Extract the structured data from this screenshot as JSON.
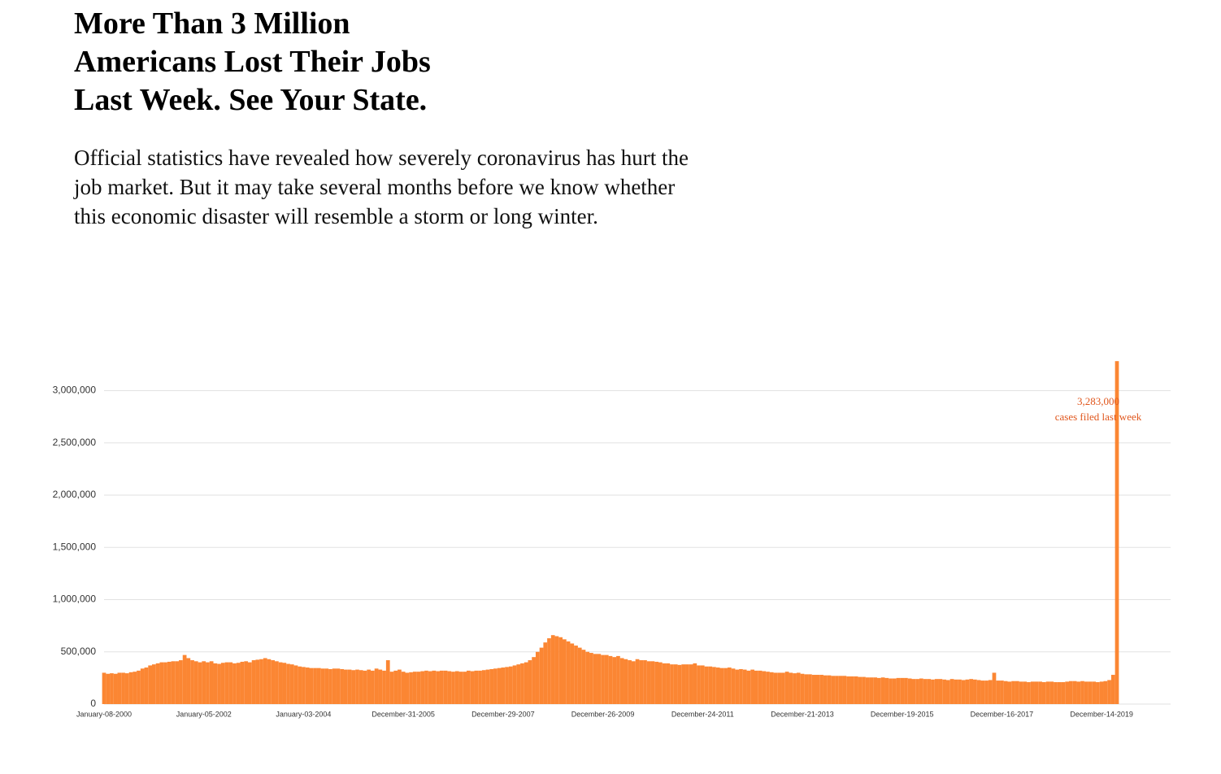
{
  "headline": "More Than 3 Million Americans Lost Their Jobs Last Week. See Your State.",
  "description": "Official statistics have revealed how severely coronavirus has hurt the job market. But it may take several months before we know whether this economic disaster will resemble a storm or long winter.",
  "chart_data": {
    "type": "bar",
    "color": "#fb8633",
    "grid": true,
    "annotations": [
      "3,283,000",
      "cases filed last week"
    ],
    "ylim": [
      0,
      3300000
    ],
    "yticks": [
      0,
      {
        "value": 500000,
        "label": "500,000"
      },
      {
        "value": 1000000,
        "label": "1,000,000"
      },
      {
        "value": 1500000,
        "label": "1,500,000"
      },
      {
        "value": 2000000,
        "label": "2,000,000"
      },
      {
        "value": 2500000,
        "label": "2,500,000"
      },
      {
        "value": 3000000,
        "label": "3,000,000"
      }
    ],
    "categories": [
      "January-08-2000",
      null,
      null,
      null,
      null,
      null,
      null,
      null,
      null,
      null,
      null,
      null,
      null,
      null,
      null,
      null,
      null,
      null,
      null,
      null,
      null,
      null,
      null,
      null,
      null,
      null,
      "January-05-2002",
      null,
      null,
      null,
      null,
      null,
      null,
      null,
      null,
      null,
      null,
      null,
      null,
      null,
      null,
      null,
      null,
      null,
      null,
      null,
      null,
      null,
      null,
      null,
      null,
      null,
      "January-03-2004",
      null,
      null,
      null,
      null,
      null,
      null,
      null,
      null,
      null,
      null,
      null,
      null,
      null,
      null,
      null,
      null,
      null,
      null,
      null,
      null,
      null,
      null,
      null,
      null,
      null,
      "December-31-2005",
      null,
      null,
      null,
      null,
      null,
      null,
      null,
      null,
      null,
      null,
      null,
      null,
      null,
      null,
      null,
      null,
      null,
      null,
      null,
      null,
      null,
      null,
      null,
      null,
      null,
      "December-29-2007",
      null,
      null,
      null,
      null,
      null,
      null,
      null,
      null,
      null,
      null,
      null,
      null,
      null,
      null,
      null,
      null,
      null,
      null,
      null,
      null,
      null,
      null,
      null,
      null,
      null,
      "December-26-2009",
      null,
      null,
      null,
      null,
      null,
      null,
      null,
      null,
      null,
      null,
      null,
      null,
      null,
      null,
      null,
      null,
      null,
      null,
      null,
      null,
      null,
      null,
      null,
      null,
      null,
      "December-24-2011",
      null,
      null,
      null,
      null,
      null,
      null,
      null,
      null,
      null,
      null,
      null,
      null,
      null,
      null,
      null,
      null,
      null,
      null,
      null,
      null,
      null,
      null,
      null,
      null,
      null,
      "December-21-2013",
      null,
      null,
      null,
      null,
      null,
      null,
      null,
      null,
      null,
      null,
      null,
      null,
      null,
      null,
      null,
      null,
      null,
      null,
      null,
      null,
      null,
      null,
      null,
      null,
      null,
      "December-19-2015",
      null,
      null,
      null,
      null,
      null,
      null,
      null,
      null,
      null,
      null,
      null,
      null,
      null,
      null,
      null,
      null,
      null,
      null,
      null,
      null,
      null,
      null,
      null,
      null,
      null,
      "December-16-2017",
      null,
      null,
      null,
      null,
      null,
      null,
      null,
      null,
      null,
      null,
      null,
      null,
      null,
      null,
      null,
      null,
      null,
      null,
      null,
      null,
      null,
      null,
      null,
      null,
      null,
      "December-14-2019",
      null,
      null,
      null,
      null
    ],
    "values": [
      300000,
      290000,
      295000,
      290000,
      300000,
      300000,
      295000,
      305000,
      310000,
      320000,
      340000,
      350000,
      370000,
      380000,
      390000,
      400000,
      400000,
      405000,
      410000,
      410000,
      420000,
      470000,
      440000,
      420000,
      410000,
      400000,
      410000,
      400000,
      410000,
      390000,
      385000,
      395000,
      400000,
      400000,
      390000,
      395000,
      405000,
      410000,
      400000,
      420000,
      425000,
      430000,
      440000,
      430000,
      420000,
      410000,
      400000,
      395000,
      385000,
      380000,
      370000,
      360000,
      355000,
      350000,
      345000,
      345000,
      345000,
      340000,
      340000,
      335000,
      340000,
      340000,
      335000,
      330000,
      330000,
      325000,
      330000,
      325000,
      320000,
      330000,
      320000,
      340000,
      330000,
      320000,
      420000,
      310000,
      320000,
      330000,
      310000,
      300000,
      305000,
      310000,
      310000,
      315000,
      320000,
      315000,
      320000,
      315000,
      320000,
      320000,
      315000,
      310000,
      315000,
      310000,
      310000,
      320000,
      315000,
      320000,
      320000,
      325000,
      330000,
      335000,
      340000,
      345000,
      350000,
      355000,
      360000,
      370000,
      380000,
      390000,
      400000,
      420000,
      450000,
      500000,
      540000,
      590000,
      630000,
      660000,
      650000,
      640000,
      620000,
      600000,
      580000,
      560000,
      540000,
      520000,
      500000,
      490000,
      480000,
      480000,
      470000,
      470000,
      460000,
      450000,
      460000,
      440000,
      430000,
      420000,
      410000,
      430000,
      420000,
      420000,
      410000,
      410000,
      405000,
      400000,
      390000,
      390000,
      380000,
      380000,
      375000,
      380000,
      380000,
      380000,
      390000,
      370000,
      370000,
      360000,
      360000,
      355000,
      350000,
      345000,
      345000,
      350000,
      340000,
      330000,
      335000,
      330000,
      320000,
      330000,
      320000,
      320000,
      315000,
      310000,
      305000,
      300000,
      300000,
      300000,
      310000,
      300000,
      295000,
      300000,
      290000,
      285000,
      285000,
      280000,
      280000,
      280000,
      275000,
      275000,
      270000,
      270000,
      270000,
      270000,
      265000,
      265000,
      265000,
      260000,
      260000,
      255000,
      255000,
      255000,
      250000,
      255000,
      250000,
      245000,
      245000,
      250000,
      250000,
      250000,
      245000,
      240000,
      240000,
      245000,
      240000,
      240000,
      235000,
      240000,
      240000,
      235000,
      230000,
      240000,
      235000,
      235000,
      230000,
      235000,
      240000,
      235000,
      230000,
      225000,
      225000,
      230000,
      300000,
      225000,
      225000,
      220000,
      215000,
      220000,
      220000,
      215000,
      215000,
      210000,
      215000,
      215000,
      215000,
      210000,
      215000,
      215000,
      210000,
      210000,
      210000,
      215000,
      220000,
      220000,
      215000,
      220000,
      215000,
      215000,
      215000,
      210000,
      215000,
      220000,
      230000,
      280000,
      3283000
    ]
  }
}
